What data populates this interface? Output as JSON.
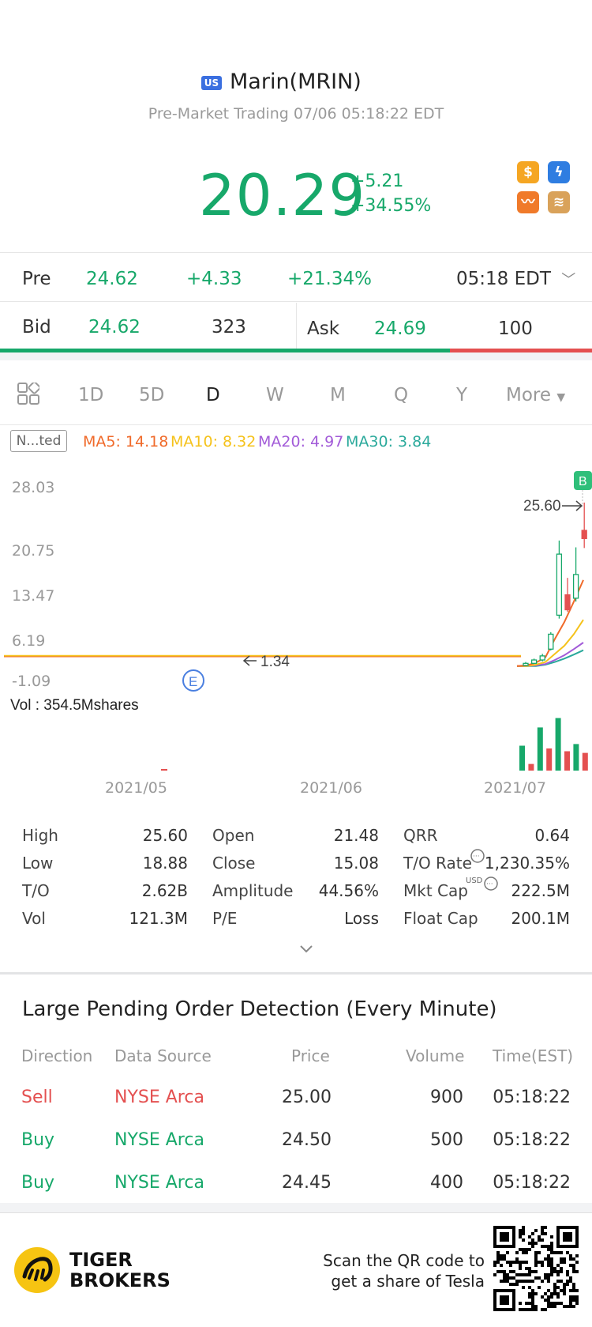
{
  "header": {
    "market_badge": "US",
    "title": "Marin(MRIN)",
    "subtitle": "Pre-Market Trading 07/06 05:18:22 EDT",
    "price": "20.29",
    "change": "+5.21",
    "change_pct": "+34.55%",
    "icons": [
      "dollar-icon",
      "lightning-icon",
      "trend-icon",
      "stack-icon"
    ]
  },
  "pre": {
    "label": "Pre",
    "price": "24.62",
    "change": "+4.33",
    "change_pct": "+21.34%",
    "time": "05:18 EDT"
  },
  "quote": {
    "bid_label": "Bid",
    "bid": "24.62",
    "bid_size": "323",
    "ask_label": "Ask",
    "ask": "24.69",
    "ask_size": "100",
    "bid_ratio": 0.76
  },
  "periods": [
    "1D",
    "5D",
    "D",
    "W",
    "M",
    "Q",
    "Y",
    "More"
  ],
  "active_period": "D",
  "indicator": {
    "tag": "N...ted",
    "ma5": "MA5: 14.18",
    "ma10": "MA10: 8.32",
    "ma20": "MA20: 4.97",
    "ma30": "MA30: 3.84",
    "colors": {
      "ma5": "#f06a2a",
      "ma10": "#f5c21b",
      "ma20": "#a25bd8",
      "ma30": "#2aa99b"
    }
  },
  "chart_data": {
    "type": "candlestick",
    "y_ticks": [
      "28.03",
      "20.75",
      "13.47",
      "6.19",
      "-1.09"
    ],
    "ylim": [
      -1.09,
      28.03
    ],
    "x_ticks": [
      "2021/05",
      "2021/06",
      "2021/07"
    ],
    "high_marker": "25.60",
    "low_marker": "1.34",
    "event_marker": "E",
    "signal_marker": "B",
    "volume_label": "Vol  : 354.5Mshares",
    "candles": [
      {
        "o": 1.6,
        "c": 1.9,
        "h": 2.1,
        "l": 1.5,
        "up": true
      },
      {
        "o": 1.9,
        "c": 2.4,
        "h": 2.6,
        "l": 1.8,
        "up": true
      },
      {
        "o": 2.4,
        "c": 3.0,
        "h": 3.3,
        "l": 2.2,
        "up": true
      },
      {
        "o": 4.0,
        "c": 6.2,
        "h": 6.5,
        "l": 3.8,
        "up": true
      },
      {
        "o": 9.0,
        "c": 18.0,
        "h": 20.0,
        "l": 8.5,
        "up": true
      },
      {
        "o": 12.0,
        "c": 9.8,
        "h": 14.5,
        "l": 9.5,
        "up": false
      },
      {
        "o": 11.5,
        "c": 15.0,
        "h": 19.0,
        "l": 11.0,
        "up": true
      },
      {
        "o": 21.5,
        "c": 20.3,
        "h": 25.6,
        "l": 18.9,
        "up": false
      }
    ],
    "volumes": [
      {
        "v": 0.45,
        "up": true
      },
      {
        "v": 0.12,
        "up": false
      },
      {
        "v": 0.78,
        "up": true
      },
      {
        "v": 0.4,
        "up": false
      },
      {
        "v": 0.95,
        "up": true
      },
      {
        "v": 0.35,
        "up": false
      },
      {
        "v": 0.48,
        "up": true
      },
      {
        "v": 0.32,
        "up": false
      }
    ],
    "ma_series": {
      "ma5": [
        1.5,
        1.6,
        2.0,
        2.8,
        5.5,
        8.0,
        11.0,
        14.18
      ],
      "ma10": [
        1.5,
        1.5,
        1.7,
        2.1,
        3.3,
        4.5,
        6.2,
        8.32
      ],
      "ma20": [
        1.5,
        1.5,
        1.6,
        1.8,
        2.4,
        3.1,
        4.0,
        4.97
      ],
      "ma30": [
        1.5,
        1.5,
        1.5,
        1.7,
        2.1,
        2.6,
        3.2,
        3.84
      ]
    }
  },
  "stats": [
    {
      "label": "High",
      "value": "25.60"
    },
    {
      "label": "Open",
      "value": "21.48"
    },
    {
      "label": "QRR",
      "value": "0.64"
    },
    {
      "label": "Low",
      "value": "18.88"
    },
    {
      "label": "Close",
      "value": "15.08"
    },
    {
      "label": "T/O Rate",
      "value": "1,230.35%"
    },
    {
      "label": "T/O",
      "value": "2.62B"
    },
    {
      "label": "Amplitude",
      "value": "44.56%"
    },
    {
      "label": "Mkt Cap",
      "value": "222.5M"
    },
    {
      "label": "Vol",
      "value": "121.3M"
    },
    {
      "label": "P/E",
      "value": "Loss"
    },
    {
      "label": "Float Cap",
      "value": "200.1M"
    }
  ],
  "mkt_cap_unit": "USD",
  "orders": {
    "title": "Large Pending Order Detection (Every Minute)",
    "headers": [
      "Direction",
      "Data Source",
      "Price",
      "Volume",
      "Time(EST)"
    ],
    "rows": [
      {
        "direction": "Sell",
        "source": "NYSE Arca",
        "price": "25.00",
        "volume": "900",
        "time": "05:18:22"
      },
      {
        "direction": "Buy",
        "source": "NYSE Arca",
        "price": "24.50",
        "volume": "500",
        "time": "05:18:22"
      },
      {
        "direction": "Buy",
        "source": "NYSE Arca",
        "price": "24.45",
        "volume": "400",
        "time": "05:18:22"
      }
    ]
  },
  "footer": {
    "brand_line1": "TIGER",
    "brand_line2": "BROKERS",
    "scan_line1": "Scan the QR code to",
    "scan_line2": "get a share of Tesla"
  }
}
